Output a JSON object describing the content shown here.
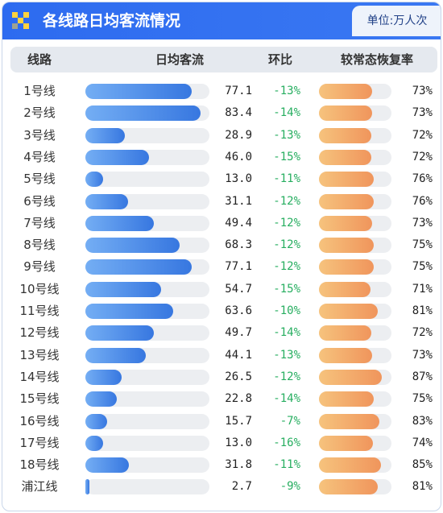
{
  "header": {
    "title": "各线路日均客流情况",
    "unit_label": "单位:万人次"
  },
  "columns": {
    "line": "线路",
    "daily_flow": "日均客流",
    "yoy": "环比",
    "recovery": "较常态恢复率"
  },
  "colors": {
    "header_blue": "#2d6bf0",
    "bar_blue": "#3777e0",
    "bar_orange": "#f0955c",
    "change_green": "#27ae60"
  },
  "chart_data": {
    "type": "table",
    "title": "各线路日均客流情况",
    "unit": "单位:万人次",
    "flow_max": 90,
    "recovery_max": 100,
    "rows": [
      {
        "line": "1号线",
        "flow": "77.1",
        "change": "-13%",
        "recovery": "73%"
      },
      {
        "line": "2号线",
        "flow": "83.4",
        "change": "-14%",
        "recovery": "73%"
      },
      {
        "line": "3号线",
        "flow": "28.9",
        "change": "-13%",
        "recovery": "72%"
      },
      {
        "line": "4号线",
        "flow": "46.0",
        "change": "-15%",
        "recovery": "72%"
      },
      {
        "line": "5号线",
        "flow": "13.0",
        "change": "-11%",
        "recovery": "76%"
      },
      {
        "line": "6号线",
        "flow": "31.1",
        "change": "-12%",
        "recovery": "76%"
      },
      {
        "line": "7号线",
        "flow": "49.4",
        "change": "-12%",
        "recovery": "73%"
      },
      {
        "line": "8号线",
        "flow": "68.3",
        "change": "-12%",
        "recovery": "75%"
      },
      {
        "line": "9号线",
        "flow": "77.1",
        "change": "-12%",
        "recovery": "75%"
      },
      {
        "line": "10号线",
        "flow": "54.7",
        "change": "-15%",
        "recovery": "71%"
      },
      {
        "line": "11号线",
        "flow": "63.6",
        "change": "-10%",
        "recovery": "81%"
      },
      {
        "line": "12号线",
        "flow": "49.7",
        "change": "-14%",
        "recovery": "72%"
      },
      {
        "line": "13号线",
        "flow": "44.1",
        "change": "-13%",
        "recovery": "73%"
      },
      {
        "line": "14号线",
        "flow": "26.5",
        "change": "-12%",
        "recovery": "87%"
      },
      {
        "line": "15号线",
        "flow": "22.8",
        "change": "-14%",
        "recovery": "75%"
      },
      {
        "line": "16号线",
        "flow": "15.7",
        "change": "-7%",
        "recovery": "83%"
      },
      {
        "line": "17号线",
        "flow": "13.0",
        "change": "-16%",
        "recovery": "74%"
      },
      {
        "line": "18号线",
        "flow": "31.8",
        "change": "-11%",
        "recovery": "85%"
      },
      {
        "line": "浦江线",
        "flow": "2.7",
        "change": "-9%",
        "recovery": "81%"
      }
    ]
  }
}
